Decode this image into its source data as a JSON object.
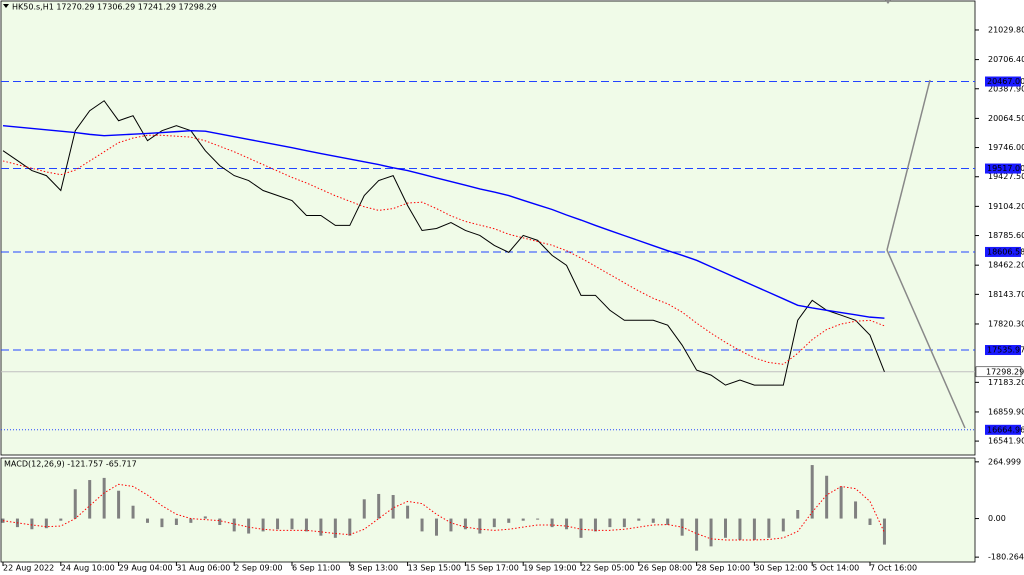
{
  "chart_data": [
    {
      "type": "line",
      "title": "HK50.s,H1  17270.29 17306.29 17241.29 17298.29",
      "categories": [
        "22 Aug 2022",
        null,
        null,
        null,
        "24 Aug 10:00",
        null,
        null,
        null,
        "29 Aug 04:00",
        null,
        null,
        null,
        "31 Aug 06:00",
        null,
        null,
        null,
        "2 Sep 09:00",
        null,
        null,
        null,
        "6 Sep 11:00",
        null,
        null,
        null,
        "8 Sep 13:00",
        null,
        null,
        null,
        "13 Sep 15:00",
        null,
        null,
        null,
        "15 Sep 17:00",
        null,
        null,
        null,
        "19 Sep 19:00",
        null,
        null,
        null,
        "22 Sep 05:00",
        null,
        null,
        null,
        "26 Sep 08:00",
        null,
        null,
        null,
        "28 Sep 10:00",
        null,
        null,
        null,
        "30 Sep 12:00",
        null,
        null,
        null,
        "5 Oct 14:00",
        null,
        null,
        null,
        "7 Oct 16:00",
        null
      ],
      "series": [
        {
          "color": "#000000",
          "values": [
            19712,
            19604,
            19495,
            19440,
            19277,
            19930,
            20148,
            20257,
            20039,
            20094,
            19821,
            19930,
            19985,
            19930,
            19712,
            19549,
            19440,
            19386,
            19277,
            19223,
            19168,
            19005,
            19005,
            18896,
            18896,
            19223,
            19386,
            19440,
            19114,
            18841,
            18863,
            18928,
            18841,
            18787,
            18678,
            18602,
            18787,
            18733,
            18569,
            18460,
            18133,
            18133,
            17970,
            17861,
            17861,
            17861,
            17807,
            17589,
            17317,
            17262,
            17153,
            17208,
            17153,
            17153,
            17153,
            17861,
            18079,
            17970,
            17916,
            17861,
            17698,
            17298.29
          ]
        },
        {
          "color": "#0000ff",
          "values": [
            19985,
            19970,
            19955,
            19940,
            19925,
            19910,
            19890,
            19876,
            19884,
            19892,
            19900,
            19910,
            19920,
            19930,
            19925,
            19895,
            19865,
            19835,
            19805,
            19775,
            19745,
            19712,
            19680,
            19650,
            19620,
            19590,
            19560,
            19525,
            19495,
            19455,
            19415,
            19375,
            19335,
            19295,
            19260,
            19222,
            19170,
            19120,
            19070,
            19010,
            18955,
            18896,
            18840,
            18785,
            18730,
            18675,
            18620,
            18570,
            18515,
            18445,
            18375,
            18305,
            18235,
            18165,
            18095,
            18024,
            17995,
            17970,
            17945,
            17920,
            17895,
            17883
          ]
        },
        {
          "color": "#ff0000",
          "values": [
            19600,
            19560,
            19520,
            19480,
            19450,
            19500,
            19600,
            19700,
            19800,
            19850,
            19880,
            19880,
            19870,
            19860,
            19820,
            19760,
            19700,
            19630,
            19560,
            19490,
            19420,
            19360,
            19290,
            19220,
            19160,
            19100,
            19060,
            19080,
            19140,
            19150,
            19080,
            19000,
            18940,
            18900,
            18860,
            18800,
            18760,
            18720,
            18680,
            18620,
            18540,
            18450,
            18360,
            18270,
            18180,
            18100,
            18040,
            17950,
            17830,
            17720,
            17620,
            17530,
            17450,
            17400,
            17380,
            17500,
            17650,
            17760,
            17820,
            17850,
            17860,
            17800
          ]
        }
      ],
      "ylim": [
        16390,
        21346
      ],
      "yticks": [
        {
          "value": 21029.8,
          "label": "21029.80"
        },
        {
          "value": 20706.4,
          "label": "20706.40"
        },
        {
          "value": 20387.9,
          "label": "20387.90"
        },
        {
          "value": 20064.5,
          "label": "20064.50"
        },
        {
          "value": 19746,
          "label": "19746.00"
        },
        {
          "value": 19427.5,
          "label": "19427.50"
        },
        {
          "value": 19104.2,
          "label": "19104.20"
        },
        {
          "value": 18785.6,
          "label": "18785.60"
        },
        {
          "value": 18462.2,
          "label": "18462.20"
        },
        {
          "value": 18143.7,
          "label": "18143.70"
        },
        {
          "value": 17820.3,
          "label": "17820.30"
        },
        {
          "value": 17183.2,
          "label": "17183.20"
        },
        {
          "value": 16859.9,
          "label": "16859.90"
        },
        {
          "value": 16541.9,
          "label": "16541.90"
        }
      ],
      "levels": [
        {
          "value": 20467,
          "label": "20467.00"
        },
        {
          "value": 19517,
          "label": "19517.00"
        },
        {
          "value": 18606.58,
          "label": "18606.58"
        },
        {
          "value": 17535.97,
          "label": "17535.97"
        },
        {
          "value": 16664.96,
          "label": "16664.96"
        }
      ],
      "current_price": 17298.29
    },
    {
      "type": "macd",
      "title": "MACD(12,26,9) -121.757 -65.717",
      "series": [
        {
          "color": "#808080",
          "values": [
            -20,
            -40,
            -50,
            -45,
            -10,
            137,
            180,
            190,
            130,
            60,
            -20,
            -40,
            -30,
            -20,
            10,
            -30,
            -60,
            -70,
            -60,
            -50,
            -50,
            -60,
            -80,
            -90,
            -80,
            90,
            115,
            110,
            60,
            -60,
            -80,
            -60,
            -50,
            -70,
            -40,
            -20,
            -10,
            -5,
            -40,
            -50,
            -90,
            -60,
            -40,
            -40,
            -10,
            -20,
            -30,
            -80,
            -150,
            -130,
            -90,
            -100,
            -100,
            -90,
            -60,
            40,
            250,
            200,
            150,
            80,
            -30,
            -121.757
          ]
        },
        {
          "color": "#ff0000",
          "values": [
            -10,
            -20,
            -30,
            -38,
            -35,
            0,
            60,
            120,
            160,
            150,
            110,
            60,
            20,
            0,
            -5,
            -10,
            -25,
            -40,
            -50,
            -55,
            -55,
            -55,
            -62,
            -70,
            -75,
            -50,
            0,
            50,
            80,
            70,
            20,
            -20,
            -40,
            -50,
            -55,
            -50,
            -40,
            -30,
            -30,
            -35,
            -50,
            -55,
            -55,
            -50,
            -40,
            -30,
            -28,
            -40,
            -70,
            -95,
            -100,
            -100,
            -100,
            -98,
            -90,
            -60,
            30,
            110,
            150,
            140,
            80,
            -65.717
          ]
        }
      ],
      "ylim": [
        -203,
        283
      ],
      "yticks": [
        {
          "value": 264.999,
          "label": "264.999"
        },
        {
          "value": 0,
          "label": "0.00"
        },
        {
          "value": -180.264,
          "label": "-180.264"
        }
      ]
    }
  ]
}
